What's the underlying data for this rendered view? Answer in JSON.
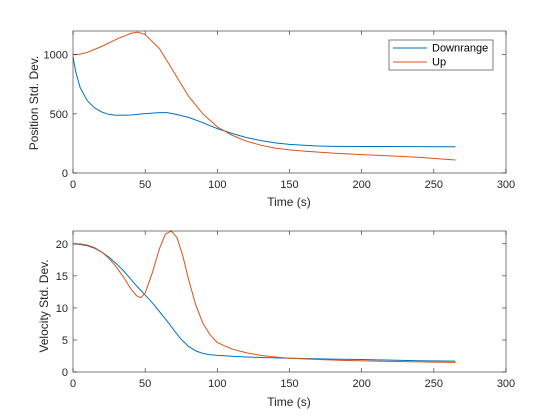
{
  "chart_data": [
    {
      "type": "line",
      "title": "",
      "xlabel": "Time (s)",
      "ylabel": "Position Std. Dev.",
      "xlim": [
        0,
        300
      ],
      "ylim": [
        0,
        1200
      ],
      "xticks": [
        0,
        50,
        100,
        150,
        200,
        250,
        300
      ],
      "yticks": [
        0,
        500,
        1000
      ],
      "grid": false,
      "legend": {
        "position": "top-right",
        "entries": [
          "Downrange",
          "Up"
        ]
      },
      "series": [
        {
          "name": "Downrange",
          "color": "#0072BD",
          "x": [
            0,
            2,
            5,
            10,
            15,
            20,
            25,
            30,
            40,
            50,
            60,
            65,
            70,
            80,
            90,
            100,
            110,
            120,
            130,
            140,
            150,
            160,
            170,
            180,
            200,
            220,
            240,
            260,
            265
          ],
          "y": [
            980,
            850,
            720,
            610,
            550,
            515,
            495,
            488,
            490,
            502,
            510,
            510,
            500,
            470,
            425,
            375,
            335,
            300,
            275,
            255,
            242,
            234,
            228,
            225,
            224,
            224,
            223,
            222,
            222
          ]
        },
        {
          "name": "Up",
          "color": "#D95319",
          "x": [
            0,
            5,
            10,
            20,
            30,
            40,
            45,
            50,
            60,
            70,
            80,
            90,
            100,
            110,
            120,
            130,
            140,
            150,
            160,
            180,
            200,
            220,
            240,
            265
          ],
          "y": [
            1000,
            1005,
            1020,
            1070,
            1130,
            1180,
            1190,
            1170,
            1050,
            850,
            650,
            500,
            390,
            320,
            270,
            235,
            210,
            195,
            185,
            168,
            155,
            145,
            132,
            110
          ]
        }
      ]
    },
    {
      "type": "line",
      "title": "",
      "xlabel": "Time (s)",
      "ylabel": "Velocity Std. Dev.",
      "xlim": [
        0,
        300
      ],
      "ylim": [
        0,
        22
      ],
      "xticks": [
        0,
        50,
        100,
        150,
        200,
        250,
        300
      ],
      "yticks": [
        0,
        5,
        10,
        15,
        20
      ],
      "grid": false,
      "series": [
        {
          "name": "Downrange",
          "color": "#0072BD",
          "x": [
            0,
            5,
            10,
            15,
            20,
            25,
            30,
            35,
            40,
            45,
            50,
            55,
            60,
            65,
            70,
            75,
            80,
            85,
            90,
            95,
            100,
            110,
            120,
            140,
            160,
            180,
            200,
            220,
            240,
            265
          ],
          "y": [
            20,
            19.9,
            19.7,
            19.3,
            18.7,
            17.9,
            16.9,
            15.8,
            14.5,
            13.2,
            12.0,
            10.8,
            9.4,
            8.0,
            6.5,
            5.1,
            4.0,
            3.3,
            2.9,
            2.7,
            2.6,
            2.45,
            2.35,
            2.2,
            2.1,
            2.0,
            1.95,
            1.85,
            1.75,
            1.7
          ]
        },
        {
          "name": "Up",
          "color": "#D95319",
          "x": [
            0,
            5,
            10,
            15,
            20,
            25,
            30,
            35,
            40,
            44,
            47,
            50,
            55,
            60,
            64,
            68,
            72,
            76,
            80,
            85,
            90,
            95,
            100,
            110,
            120,
            130,
            140,
            150,
            170,
            190,
            210,
            230,
            250,
            265
          ],
          "y": [
            20,
            20,
            19.8,
            19.4,
            18.7,
            17.7,
            16.4,
            14.8,
            13.0,
            11.9,
            11.6,
            12.3,
            15.5,
            19.3,
            21.5,
            22.0,
            21.0,
            18.2,
            14.5,
            10.5,
            7.6,
            5.8,
            4.6,
            3.6,
            3.0,
            2.6,
            2.35,
            2.15,
            1.95,
            1.8,
            1.7,
            1.62,
            1.55,
            1.5
          ]
        }
      ]
    }
  ]
}
